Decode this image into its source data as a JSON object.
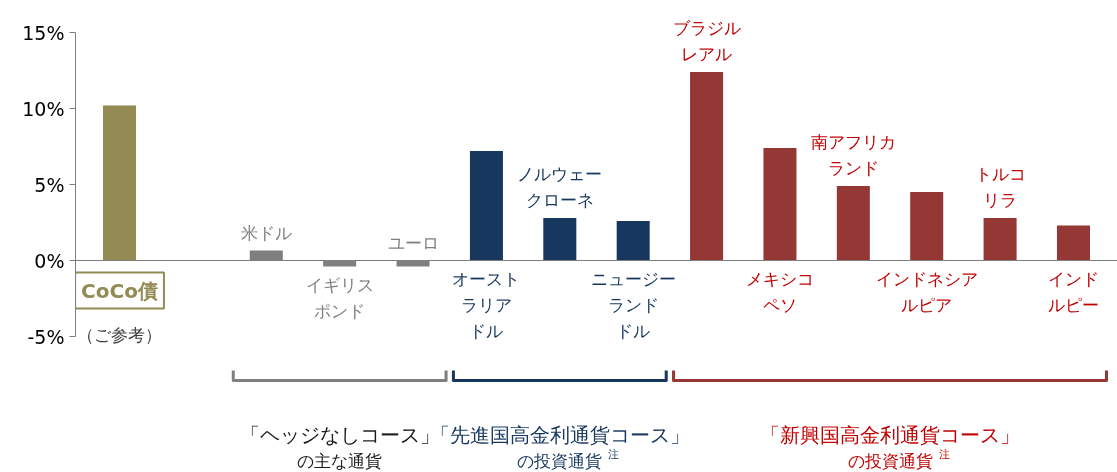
{
  "chart_data": {
    "type": "bar",
    "categories": [
      "CoCo債",
      null,
      "米ドル",
      "イギリスポンド",
      "ユーロ",
      "オーストラリアドル",
      "ノルウェークローネ",
      "ニュージーランドドル",
      "ブラジルレアル",
      "メキシコペソ",
      "南アフリカランド",
      "インドネシアルピア",
      "トルコリラ",
      "インドルピー"
    ],
    "values": [
      10.2,
      null,
      0.65,
      -0.4,
      -0.4,
      7.2,
      2.8,
      2.6,
      12.4,
      7.4,
      4.9,
      4.5,
      2.8,
      2.3
    ],
    "colors": [
      "#948a54",
      "#948a54",
      "#7f7f7f",
      "#7f7f7f",
      "#7f7f7f",
      "#17375e",
      "#17375e",
      "#17375e",
      "#953735",
      "#953735",
      "#953735",
      "#953735",
      "#953735",
      "#953735"
    ],
    "ylim": [
      -5,
      15
    ],
    "yticks": [
      {
        "value": -5,
        "label": "-5%"
      },
      {
        "value": 0,
        "label": "0%"
      },
      {
        "value": 5,
        "label": "5%"
      },
      {
        "value": 10,
        "label": "10%"
      },
      {
        "value": 15,
        "label": "15%"
      }
    ],
    "grid": false,
    "legend": false,
    "annotations": [
      "（ご参考）",
      "「ヘッジなしコース」",
      "の主な通貨",
      "「先進国高金利通貨コース」",
      "の投資通貨 $^{注}$",
      "「新興国高金利通貨コース」",
      "の投資通貨 $^{注}$"
    ]
  }
}
